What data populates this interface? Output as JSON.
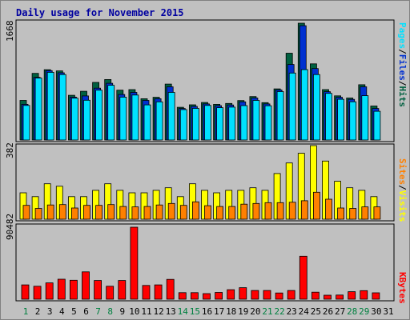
{
  "title": "Daily usage for November 2015",
  "colors": {
    "pages": "#00e0ff",
    "files": "#0030d0",
    "hits": "#006040",
    "visits": "#ffff00",
    "sites": "#ff8000",
    "kbytes": "#ff0000",
    "title": "#0000a0",
    "weekend_day": "#008040",
    "weekday": "#000000"
  },
  "chart_data": [
    {
      "type": "bar",
      "name": "hits-files-pages",
      "ymax_label": "1668",
      "ylim": [
        0,
        1668
      ],
      "right_labels": [
        "Pages",
        "/",
        "Files",
        "/",
        "Hits"
      ],
      "x": [
        "1",
        "2",
        "3",
        "4",
        "5",
        "6",
        "7",
        "8",
        "9",
        "10",
        "11",
        "12",
        "13",
        "14",
        "15",
        "16",
        "17",
        "18",
        "19",
        "20",
        "21",
        "22",
        "23",
        "24",
        "25",
        "26",
        "27",
        "28",
        "29",
        "30",
        "31"
      ],
      "series": [
        {
          "name": "Hits",
          "values": [
            565,
            952,
            1004,
            987,
            639,
            696,
            823,
            864,
            712,
            720,
            590,
            610,
            799,
            467,
            503,
            536,
            510,
            522,
            563,
            620,
            534,
            730,
            1240,
            1668,
            1088,
            720,
            631,
            600,
            790,
            486,
            0
          ]
        },
        {
          "name": "Files",
          "values": [
            510,
            895,
            990,
            960,
            612,
            630,
            740,
            810,
            650,
            680,
            565,
            590,
            760,
            450,
            480,
            515,
            490,
            500,
            545,
            600,
            515,
            715,
            1078,
            1633,
            1020,
            690,
            610,
            580,
            760,
            450,
            0
          ]
        },
        {
          "name": "Pages",
          "values": [
            493,
            884,
            967,
            935,
            598,
            568,
            712,
            782,
            612,
            642,
            501,
            545,
            680,
            434,
            451,
            494,
            462,
            470,
            491,
            565,
            489,
            691,
            956,
            1005,
            935,
            666,
            582,
            546,
            633,
            410,
            0
          ]
        }
      ]
    },
    {
      "type": "bar",
      "name": "visits-sites",
      "ymax_label": "382",
      "ylim": [
        0,
        382
      ],
      "right_labels": [
        "Sites",
        "/",
        "Visits"
      ],
      "x": [
        "1",
        "2",
        "3",
        "4",
        "5",
        "6",
        "7",
        "8",
        "9",
        "10",
        "11",
        "12",
        "13",
        "14",
        "15",
        "16",
        "17",
        "18",
        "19",
        "20",
        "21",
        "22",
        "23",
        "24",
        "25",
        "26",
        "27",
        "28",
        "29",
        "30",
        "31"
      ],
      "series": [
        {
          "name": "Visits",
          "values": [
            137,
            117,
            184,
            171,
            117,
            117,
            150,
            184,
            150,
            137,
            137,
            150,
            163,
            117,
            184,
            150,
            137,
            150,
            150,
            163,
            150,
            237,
            292,
            342,
            382,
            302,
            197,
            163,
            150,
            117,
            0
          ]
        },
        {
          "name": "Sites",
          "values": [
            72,
            56,
            74,
            76,
            58,
            72,
            72,
            76,
            66,
            64,
            66,
            74,
            82,
            72,
            90,
            70,
            66,
            66,
            78,
            82,
            86,
            86,
            88,
            96,
            140,
            104,
            58,
            56,
            64,
            64,
            0
          ]
        }
      ]
    },
    {
      "type": "bar",
      "name": "kbytes",
      "ymax_label": "90482",
      "ylim": [
        0,
        90482
      ],
      "right_labels": [
        "KBytes"
      ],
      "x": [
        "1",
        "2",
        "3",
        "4",
        "5",
        "6",
        "7",
        "8",
        "9",
        "10",
        "11",
        "12",
        "13",
        "14",
        "15",
        "16",
        "17",
        "18",
        "19",
        "20",
        "21",
        "22",
        "23",
        "24",
        "25",
        "26",
        "27",
        "28",
        "29",
        "30",
        "31"
      ],
      "series": [
        {
          "name": "KBytes",
          "values": [
            17955,
            16250,
            20510,
            25130,
            23780,
            34340,
            23500,
            16250,
            23500,
            90482,
            17300,
            17960,
            24900,
            8200,
            8200,
            7000,
            8500,
            12000,
            14500,
            11000,
            11000,
            7800,
            11000,
            54000,
            8800,
            5000,
            5200,
            9500,
            10800,
            8000,
            0
          ]
        }
      ]
    }
  ],
  "day_labels": [
    "1",
    "2",
    "3",
    "4",
    "5",
    "6",
    "7",
    "8",
    "9",
    "10",
    "11",
    "12",
    "13",
    "14",
    "15",
    "16",
    "17",
    "18",
    "19",
    "20",
    "21",
    "22",
    "23",
    "24",
    "25",
    "26",
    "27",
    "28",
    "29",
    "30",
    "31"
  ],
  "weekend_days": [
    1,
    7,
    8,
    14,
    15,
    21,
    22,
    28,
    29
  ]
}
